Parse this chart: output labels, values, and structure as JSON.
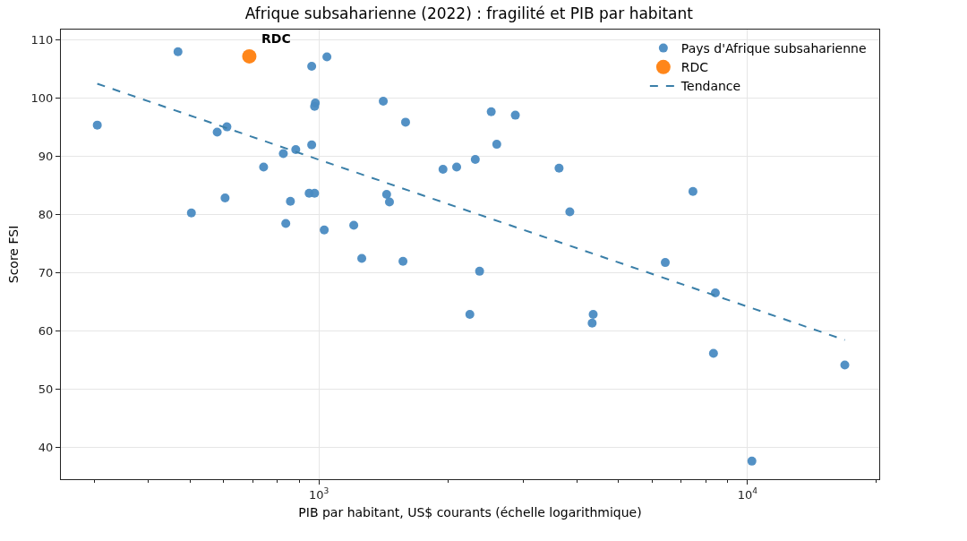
{
  "chart_data": {
    "type": "scatter",
    "title": "Afrique subsaharienne (2022) : fragilité et PIB par habitant",
    "xlabel": "PIB par habitant, US$ courants (échelle logarithmique)",
    "ylabel": "Score FSI",
    "log": "x",
    "grid": true,
    "legend": "top right",
    "marker": "circle",
    "xlim": [
      250,
      20300
    ],
    "ylim": [
      34.6,
      111.8
    ],
    "xticks": [
      {
        "value": 300,
        "label": null
      },
      {
        "value": 400,
        "label": null
      },
      {
        "value": 500,
        "label": null
      },
      {
        "value": 600,
        "label": null
      },
      {
        "value": 700,
        "label": null
      },
      {
        "value": 800,
        "label": null
      },
      {
        "value": 900,
        "label": null
      },
      {
        "value": 1000,
        "label": "10$^{3}$"
      },
      {
        "value": 2000,
        "label": null
      },
      {
        "value": 3000,
        "label": null
      },
      {
        "value": 4000,
        "label": null
      },
      {
        "value": 5000,
        "label": null
      },
      {
        "value": 6000,
        "label": null
      },
      {
        "value": 7000,
        "label": null
      },
      {
        "value": 8000,
        "label": null
      },
      {
        "value": 9000,
        "label": null
      },
      {
        "value": 10000,
        "label": "10$^{4}$"
      },
      {
        "value": 20000,
        "label": null
      }
    ],
    "yticks": [
      40,
      50,
      60,
      70,
      80,
      90,
      100,
      110
    ],
    "annotations": [
      {
        "text": "RDC",
        "x": 688,
        "y": 107.2
      }
    ],
    "series": [
      {
        "name": "Pays d'Afrique subsaharienne",
        "color": "#4a8bc2",
        "x": [
          304,
          469,
          504,
          579,
          610,
          604,
          743,
          826,
          837,
          858,
          883,
          949,
          977,
          962,
          962,
          1044,
          981,
          977,
          1029,
          1206,
          1259,
          1413,
          1439,
          1461,
          1571,
          1593,
          1948,
          2096,
          2250,
          2317,
          2371,
          2524,
          2600,
          2873,
          3634,
          3850,
          4341,
          4365,
          6430,
          7460,
          8330,
          8415,
          10240,
          16870
        ],
        "values": [
          95.4,
          108.0,
          80.3,
          94.2,
          95.1,
          82.9,
          88.2,
          90.5,
          78.5,
          82.3,
          91.2,
          83.7,
          83.7,
          92.0,
          105.5,
          107.1,
          99.2,
          98.6,
          77.4,
          78.2,
          72.5,
          99.5,
          83.5,
          82.2,
          72.0,
          95.9,
          87.8,
          88.2,
          62.9,
          89.5,
          70.3,
          97.7,
          92.1,
          97.1,
          88.0,
          80.5,
          61.4,
          62.9,
          71.8,
          84.0,
          56.2,
          66.6,
          37.7,
          54.2
        ]
      },
      {
        "name": "RDC",
        "color": "#ff7f0e",
        "x": [
          688
        ],
        "values": [
          107.2
        ]
      },
      {
        "name": "Tendance",
        "type": "line",
        "marker": "none",
        "line_style": "dashed",
        "color": "#3a7fa8",
        "x": [
          304,
          16870
        ],
        "values": [
          102.5,
          58.5
        ]
      }
    ]
  }
}
